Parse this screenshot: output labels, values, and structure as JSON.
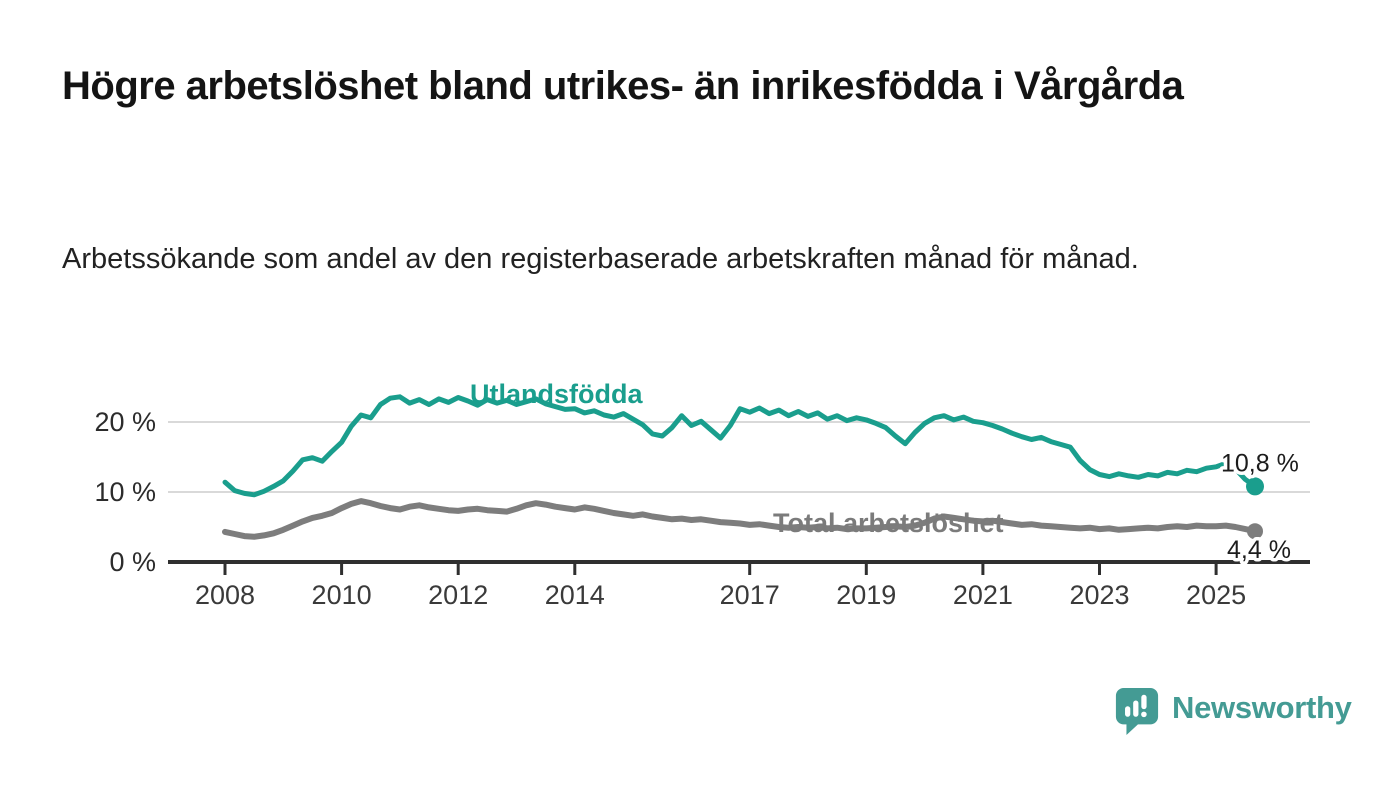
{
  "header": {
    "title": "Högre arbetslöshet bland utrikes- än inrikesfödda i Vårgårda",
    "subtitle": "Arbetssökande som andel av den registerbaserade arbetskraften månad för månad."
  },
  "footer": {
    "brand": "Newsworthy",
    "logo_icon": "speech-bubble-with-bar-chart-and-exclamation"
  },
  "colors": {
    "foreign_born_line": "#1a9e8d",
    "total_line": "#7d7d7d",
    "total_label": "#7b7b7b",
    "grid": "#d9d9d9",
    "axis": "#2f2f2f",
    "annotation_text": "#1c1c1c",
    "brand_teal": "#449b94",
    "background": "#ffffff"
  },
  "chart_data": {
    "type": "line",
    "title": "Högre arbetslöshet bland utrikes- än inrikesfödda i Vårgårda",
    "subtitle": "Arbetssökande som andel av den registerbaserade arbetskraften månad för månad.",
    "grid": "horizontal-only",
    "legend": "inline-labels-on-lines",
    "x": {
      "start_year": 2008,
      "end_year": 2025.67,
      "points_per_year": 6,
      "tick_years": [
        2008,
        2010,
        2012,
        2014,
        2017,
        2019,
        2021,
        2023,
        2025
      ],
      "tick_labels": [
        "2008",
        "2010",
        "2012",
        "2014",
        "2017",
        "2019",
        "2021",
        "2023",
        "2025"
      ]
    },
    "y": {
      "unit": "%",
      "range": [
        0,
        26
      ],
      "ticks": [
        0,
        10,
        20
      ],
      "tick_labels": [
        "0 %",
        "10 %",
        "20 %"
      ]
    },
    "series": [
      {
        "name": "Utlandsfödda",
        "color": "#1a9e8d",
        "last_value": 10.8,
        "last_value_label": "10,8 %",
        "values": [
          11.4,
          10.2,
          9.8,
          9.6,
          10.1,
          10.8,
          11.6,
          13.0,
          14.6,
          14.9,
          14.4,
          15.8,
          17.1,
          19.4,
          21.0,
          20.6,
          22.5,
          23.4,
          23.6,
          22.7,
          23.2,
          22.5,
          23.3,
          22.8,
          23.5,
          23.0,
          22.4,
          23.2,
          22.7,
          23.1,
          22.5,
          22.9,
          23.3,
          22.6,
          22.2,
          21.8,
          21.9,
          21.3,
          21.6,
          21.0,
          20.7,
          21.2,
          20.4,
          19.6,
          18.3,
          18.0,
          19.2,
          20.9,
          19.5,
          20.1,
          18.9,
          17.7,
          19.5,
          21.9,
          21.4,
          22.0,
          21.2,
          21.7,
          20.9,
          21.5,
          20.8,
          21.3,
          20.4,
          20.9,
          20.2,
          20.6,
          20.3,
          19.8,
          19.2,
          18.0,
          16.9,
          18.5,
          19.8,
          20.6,
          20.9,
          20.3,
          20.7,
          20.1,
          19.9,
          19.5,
          19.0,
          18.4,
          17.9,
          17.5,
          17.8,
          17.2,
          16.8,
          16.4,
          14.5,
          13.2,
          12.5,
          12.2,
          12.6,
          12.3,
          12.1,
          12.5,
          12.3,
          12.8,
          12.6,
          13.1,
          12.9,
          13.4,
          13.6,
          14.1,
          13.3,
          11.8,
          10.8
        ]
      },
      {
        "name": "Total arbetslöshet",
        "color": "#7d7d7d",
        "last_value": 4.4,
        "last_value_label": "4,4 %",
        "values": [
          4.3,
          4.0,
          3.7,
          3.6,
          3.8,
          4.1,
          4.6,
          5.2,
          5.8,
          6.3,
          6.6,
          7.0,
          7.7,
          8.3,
          8.7,
          8.4,
          8.0,
          7.7,
          7.5,
          7.9,
          8.1,
          7.8,
          7.6,
          7.4,
          7.3,
          7.5,
          7.6,
          7.4,
          7.3,
          7.2,
          7.6,
          8.1,
          8.4,
          8.2,
          7.9,
          7.7,
          7.5,
          7.8,
          7.6,
          7.3,
          7.0,
          6.8,
          6.6,
          6.8,
          6.5,
          6.3,
          6.1,
          6.2,
          6.0,
          6.1,
          5.9,
          5.7,
          5.6,
          5.5,
          5.3,
          5.4,
          5.2,
          5.0,
          4.9,
          5.0,
          4.9,
          5.0,
          4.8,
          4.9,
          4.7,
          4.8,
          4.8,
          4.9,
          5.0,
          5.1,
          5.0,
          5.2,
          5.6,
          6.2,
          6.5,
          6.3,
          6.1,
          5.9,
          5.8,
          5.9,
          5.7,
          5.5,
          5.3,
          5.4,
          5.2,
          5.1,
          5.0,
          4.9,
          4.8,
          4.9,
          4.7,
          4.8,
          4.6,
          4.7,
          4.8,
          4.9,
          4.8,
          5.0,
          5.1,
          5.0,
          5.2,
          5.1,
          5.1,
          5.2,
          5.0,
          4.7,
          4.4
        ]
      }
    ]
  }
}
